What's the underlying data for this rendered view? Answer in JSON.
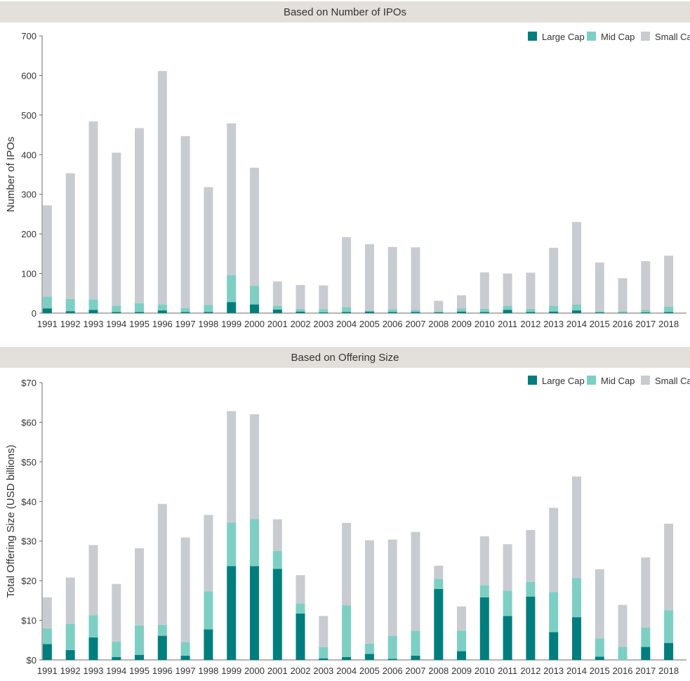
{
  "colors": {
    "large": "#007E7E",
    "mid": "#7ECFC3",
    "small": "#C8CCD0",
    "header_bg": "#E3E0DB",
    "axis": "#6b6b6b"
  },
  "chart_data": [
    {
      "type": "bar",
      "stacked": true,
      "title": "Based on Number of IPOs",
      "ylabel": "Number of IPOs",
      "xlabel": "",
      "ylim": [
        0,
        700
      ],
      "yticks": [
        0,
        100,
        200,
        300,
        400,
        500,
        600,
        700
      ],
      "ytick_labels": [
        "0",
        "100",
        "200",
        "300",
        "400",
        "500",
        "600",
        "700"
      ],
      "legend_position": "top-right",
      "categories": [
        "1991",
        "1992",
        "1993",
        "1994",
        "1995",
        "1996",
        "1997",
        "1998",
        "1999",
        "2000",
        "2001",
        "2002",
        "2003",
        "2004",
        "2005",
        "2006",
        "2007",
        "2008",
        "2009",
        "2010",
        "2011",
        "2012",
        "2013",
        "2014",
        "2015",
        "2016",
        "2017",
        "2018"
      ],
      "series": [
        {
          "name": "Large Cap",
          "values": [
            12,
            5,
            8,
            3,
            3,
            7,
            3,
            3,
            28,
            22,
            9,
            4,
            2,
            3,
            4,
            3,
            3,
            2,
            4,
            3,
            8,
            3,
            4,
            7,
            2,
            1,
            2,
            3
          ]
        },
        {
          "name": "Mid Cap",
          "values": [
            30,
            31,
            27,
            16,
            22,
            15,
            10,
            18,
            68,
            47,
            10,
            7,
            8,
            12,
            3,
            7,
            5,
            3,
            8,
            8,
            11,
            8,
            15,
            15,
            3,
            4,
            6,
            13
          ]
        },
        {
          "name": "Small Cap",
          "values": [
            230,
            317,
            449,
            386,
            442,
            589,
            434,
            297,
            383,
            298,
            61,
            60,
            60,
            177,
            167,
            157,
            158,
            26,
            33,
            92,
            81,
            91,
            146,
            208,
            123,
            83,
            123,
            129
          ]
        }
      ]
    },
    {
      "type": "bar",
      "stacked": true,
      "title": "Based on Offering Size",
      "ylabel": "Total Offering Size (USD billions)",
      "xlabel": "",
      "ylim": [
        0,
        70
      ],
      "yticks": [
        0,
        10,
        20,
        30,
        40,
        50,
        60,
        70
      ],
      "ytick_labels": [
        "$0",
        "$10",
        "$20",
        "$30",
        "$40",
        "$50",
        "$60",
        "$70"
      ],
      "legend_position": "top-right",
      "categories": [
        "1991",
        "1992",
        "1993",
        "1994",
        "1995",
        "1996",
        "1997",
        "1998",
        "1999",
        "2000",
        "2001",
        "2002",
        "2003",
        "2004",
        "2005",
        "2006",
        "2007",
        "2008",
        "2009",
        "2010",
        "2011",
        "2012",
        "2013",
        "2014",
        "2015",
        "2016",
        "2017",
        "2018"
      ],
      "series": [
        {
          "name": "Large Cap",
          "values": [
            4.0,
            2.5,
            5.7,
            0.7,
            1.3,
            6.1,
            1.1,
            7.7,
            23.7,
            23.7,
            23.0,
            11.7,
            0.4,
            0.7,
            1.5,
            0.3,
            1.1,
            17.9,
            2.2,
            15.8,
            11.1,
            16.0,
            7.0,
            10.8,
            0.8,
            0.0,
            3.3,
            4.3
          ]
        },
        {
          "name": "Mid Cap",
          "values": [
            4.0,
            6.6,
            5.6,
            3.9,
            7.4,
            2.8,
            3.4,
            9.6,
            11.0,
            11.9,
            4.5,
            2.6,
            2.8,
            13.1,
            2.6,
            5.8,
            6.3,
            2.6,
            5.2,
            3.1,
            6.4,
            3.7,
            10.1,
            9.9,
            4.6,
            3.3,
            4.9,
            8.2
          ]
        },
        {
          "name": "Small Cap",
          "values": [
            7.8,
            11.7,
            17.7,
            14.6,
            19.5,
            30.5,
            26.4,
            19.3,
            28.1,
            26.4,
            8.0,
            7.1,
            7.9,
            20.8,
            26.1,
            24.3,
            24.9,
            3.3,
            6.1,
            12.3,
            11.7,
            13.1,
            21.3,
            25.6,
            17.5,
            10.6,
            17.7,
            21.9
          ]
        }
      ]
    }
  ]
}
